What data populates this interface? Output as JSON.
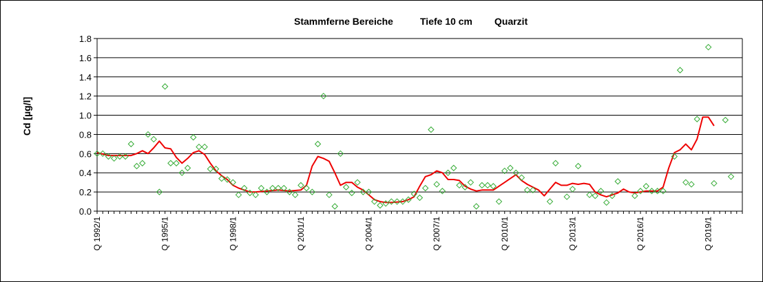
{
  "chart_data": {
    "type": "line",
    "title_parts": [
      "Stammferne Bereiche",
      "Tiefe  10 cm",
      "Quarzit"
    ],
    "ylabel": "Cd [µg/l]",
    "xlabel": "",
    "ylim": [
      0,
      1.8
    ],
    "yticks": [
      "0.0",
      "0.2",
      "0.4",
      "0.6",
      "0.8",
      "1.0",
      "1.2",
      "1.4",
      "1.6",
      "1.8"
    ],
    "ytick_values": [
      0,
      0.2,
      0.4,
      0.6,
      0.8,
      1.0,
      1.2,
      1.4,
      1.6,
      1.8
    ],
    "xlim": [
      1992.0,
      2020.5
    ],
    "xticks": [
      {
        "label": "Q 1992/1",
        "x": 1992.0
      },
      {
        "label": "Q 1995/1",
        "x": 1995.0
      },
      {
        "label": "Q 1998/1",
        "x": 1998.0
      },
      {
        "label": "Q 2001/1",
        "x": 2001.0
      },
      {
        "label": "Q 2004/1",
        "x": 2004.0
      },
      {
        "label": "Q 2007/1",
        "x": 2007.0
      },
      {
        "label": "Q 2010/1",
        "x": 2010.0
      },
      {
        "label": "Q 2013/1",
        "x": 2013.0
      },
      {
        "label": "Q 2016/1",
        "x": 2016.0
      },
      {
        "label": "Q 2019/1",
        "x": 2019.0
      }
    ],
    "grid": "horizontal",
    "legend": "none",
    "series": [
      {
        "kind": "scatter",
        "marker": "diamond-open",
        "color": "#33aa33",
        "points": [
          [
            1992.0,
            0.6
          ],
          [
            1992.25,
            0.6
          ],
          [
            1992.5,
            0.57
          ],
          [
            1992.75,
            0.55
          ],
          [
            1993.0,
            0.57
          ],
          [
            1993.25,
            0.57
          ],
          [
            1993.5,
            0.7
          ],
          [
            1993.75,
            0.47
          ],
          [
            1994.0,
            0.5
          ],
          [
            1994.25,
            0.8
          ],
          [
            1994.5,
            0.75
          ],
          [
            1994.75,
            0.2
          ],
          [
            1995.0,
            1.3
          ],
          [
            1995.25,
            0.5
          ],
          [
            1995.5,
            0.5
          ],
          [
            1995.75,
            0.4
          ],
          [
            1996.0,
            0.45
          ],
          [
            1996.25,
            0.77
          ],
          [
            1996.5,
            0.67
          ],
          [
            1996.75,
            0.67
          ],
          [
            1997.0,
            0.44
          ],
          [
            1997.25,
            0.44
          ],
          [
            1997.5,
            0.34
          ],
          [
            1997.75,
            0.33
          ],
          [
            1998.0,
            0.3
          ],
          [
            1998.25,
            0.17
          ],
          [
            1998.5,
            0.24
          ],
          [
            1998.75,
            0.19
          ],
          [
            1999.0,
            0.17
          ],
          [
            1999.25,
            0.24
          ],
          [
            1999.5,
            0.2
          ],
          [
            1999.75,
            0.24
          ],
          [
            2000.0,
            0.24
          ],
          [
            2000.25,
            0.24
          ],
          [
            2000.5,
            0.2
          ],
          [
            2000.75,
            0.17
          ],
          [
            2001.0,
            0.27
          ],
          [
            2001.25,
            0.24
          ],
          [
            2001.5,
            0.2
          ],
          [
            2001.75,
            0.7
          ],
          [
            2002.0,
            1.2
          ],
          [
            2002.25,
            0.17
          ],
          [
            2002.5,
            0.05
          ],
          [
            2002.75,
            0.6
          ],
          [
            2003.0,
            0.25
          ],
          [
            2003.25,
            0.19
          ],
          [
            2003.5,
            0.3
          ],
          [
            2003.75,
            0.2
          ],
          [
            2004.0,
            0.2
          ],
          [
            2004.25,
            0.1
          ],
          [
            2004.5,
            0.06
          ],
          [
            2004.75,
            0.08
          ],
          [
            2005.0,
            0.1
          ],
          [
            2005.25,
            0.1
          ],
          [
            2005.5,
            0.1
          ],
          [
            2005.75,
            0.12
          ],
          [
            2006.0,
            0.18
          ],
          [
            2006.25,
            0.14
          ],
          [
            2006.5,
            0.24
          ],
          [
            2006.75,
            0.85
          ],
          [
            2007.0,
            0.28
          ],
          [
            2007.25,
            0.21
          ],
          [
            2007.5,
            0.4
          ],
          [
            2007.75,
            0.45
          ],
          [
            2008.0,
            0.27
          ],
          [
            2008.25,
            0.25
          ],
          [
            2008.5,
            0.3
          ],
          [
            2008.75,
            0.05
          ],
          [
            2009.0,
            0.27
          ],
          [
            2009.25,
            0.27
          ],
          [
            2009.5,
            0.26
          ],
          [
            2009.75,
            0.1
          ],
          [
            2010.0,
            0.42
          ],
          [
            2010.25,
            0.45
          ],
          [
            2010.5,
            0.4
          ],
          [
            2010.75,
            0.35
          ],
          [
            2011.0,
            0.22
          ],
          [
            2011.25,
            0.22
          ],
          [
            2012.0,
            0.1
          ],
          [
            2012.25,
            0.5
          ],
          [
            2012.75,
            0.15
          ],
          [
            2013.0,
            0.23
          ],
          [
            2013.25,
            0.47
          ],
          [
            2013.75,
            0.17
          ],
          [
            2014.0,
            0.16
          ],
          [
            2014.25,
            0.21
          ],
          [
            2014.5,
            0.09
          ],
          [
            2014.75,
            0.16
          ],
          [
            2015.0,
            0.31
          ],
          [
            2015.75,
            0.16
          ],
          [
            2016.0,
            0.21
          ],
          [
            2016.25,
            0.26
          ],
          [
            2016.5,
            0.21
          ],
          [
            2016.75,
            0.21
          ],
          [
            2017.0,
            0.21
          ],
          [
            2017.5,
            0.57
          ],
          [
            2017.75,
            1.47
          ],
          [
            2018.0,
            0.3
          ],
          [
            2018.25,
            0.28
          ],
          [
            2018.5,
            0.96
          ],
          [
            2019.0,
            1.71
          ],
          [
            2019.25,
            0.29
          ],
          [
            2019.75,
            0.95
          ],
          [
            2020.0,
            0.36
          ]
        ]
      },
      {
        "kind": "line",
        "color": "#ee0000",
        "points": [
          [
            1992.0,
            0.61
          ],
          [
            1992.5,
            0.58
          ],
          [
            1993.0,
            0.58
          ],
          [
            1993.5,
            0.58
          ],
          [
            1993.75,
            0.6
          ],
          [
            1994.0,
            0.63
          ],
          [
            1994.25,
            0.6
          ],
          [
            1994.5,
            0.66
          ],
          [
            1994.75,
            0.73
          ],
          [
            1995.0,
            0.66
          ],
          [
            1995.25,
            0.65
          ],
          [
            1995.5,
            0.56
          ],
          [
            1995.75,
            0.5
          ],
          [
            1996.0,
            0.55
          ],
          [
            1996.25,
            0.61
          ],
          [
            1996.5,
            0.63
          ],
          [
            1996.75,
            0.59
          ],
          [
            1997.0,
            0.5
          ],
          [
            1997.25,
            0.42
          ],
          [
            1997.5,
            0.37
          ],
          [
            1997.75,
            0.33
          ],
          [
            1998.0,
            0.27
          ],
          [
            1998.25,
            0.24
          ],
          [
            1998.5,
            0.22
          ],
          [
            1998.75,
            0.2
          ],
          [
            1999.0,
            0.2
          ],
          [
            1999.5,
            0.21
          ],
          [
            2000.0,
            0.22
          ],
          [
            2000.5,
            0.21
          ],
          [
            2001.0,
            0.22
          ],
          [
            2001.25,
            0.27
          ],
          [
            2001.5,
            0.47
          ],
          [
            2001.75,
            0.57
          ],
          [
            2002.0,
            0.55
          ],
          [
            2002.25,
            0.52
          ],
          [
            2002.5,
            0.4
          ],
          [
            2002.75,
            0.27
          ],
          [
            2003.0,
            0.3
          ],
          [
            2003.25,
            0.3
          ],
          [
            2003.5,
            0.25
          ],
          [
            2003.75,
            0.22
          ],
          [
            2004.0,
            0.17
          ],
          [
            2004.25,
            0.12
          ],
          [
            2004.5,
            0.1
          ],
          [
            2004.75,
            0.09
          ],
          [
            2005.0,
            0.09
          ],
          [
            2005.5,
            0.1
          ],
          [
            2005.75,
            0.12
          ],
          [
            2006.0,
            0.15
          ],
          [
            2006.25,
            0.26
          ],
          [
            2006.5,
            0.36
          ],
          [
            2006.75,
            0.38
          ],
          [
            2007.0,
            0.42
          ],
          [
            2007.25,
            0.4
          ],
          [
            2007.5,
            0.33
          ],
          [
            2007.75,
            0.33
          ],
          [
            2008.0,
            0.32
          ],
          [
            2008.25,
            0.26
          ],
          [
            2008.5,
            0.23
          ],
          [
            2008.75,
            0.21
          ],
          [
            2009.0,
            0.22
          ],
          [
            2009.5,
            0.22
          ],
          [
            2009.75,
            0.26
          ],
          [
            2010.0,
            0.3
          ],
          [
            2010.25,
            0.34
          ],
          [
            2010.5,
            0.38
          ],
          [
            2010.75,
            0.32
          ],
          [
            2011.0,
            0.28
          ],
          [
            2011.25,
            0.25
          ],
          [
            2011.5,
            0.22
          ],
          [
            2011.75,
            0.16
          ],
          [
            2012.0,
            0.23
          ],
          [
            2012.25,
            0.3
          ],
          [
            2012.5,
            0.27
          ],
          [
            2012.75,
            0.27
          ],
          [
            2013.0,
            0.29
          ],
          [
            2013.25,
            0.28
          ],
          [
            2013.5,
            0.29
          ],
          [
            2013.75,
            0.28
          ],
          [
            2014.0,
            0.2
          ],
          [
            2014.25,
            0.17
          ],
          [
            2014.5,
            0.15
          ],
          [
            2014.75,
            0.17
          ],
          [
            2015.0,
            0.19
          ],
          [
            2015.25,
            0.23
          ],
          [
            2015.5,
            0.2
          ],
          [
            2015.75,
            0.19
          ],
          [
            2016.0,
            0.2
          ],
          [
            2016.25,
            0.21
          ],
          [
            2016.5,
            0.21
          ],
          [
            2016.75,
            0.21
          ],
          [
            2017.0,
            0.25
          ],
          [
            2017.25,
            0.45
          ],
          [
            2017.5,
            0.61
          ],
          [
            2017.75,
            0.64
          ],
          [
            2018.0,
            0.7
          ],
          [
            2018.25,
            0.64
          ],
          [
            2018.5,
            0.75
          ],
          [
            2018.75,
            0.98
          ],
          [
            2019.0,
            0.98
          ],
          [
            2019.25,
            0.89
          ]
        ]
      }
    ]
  }
}
